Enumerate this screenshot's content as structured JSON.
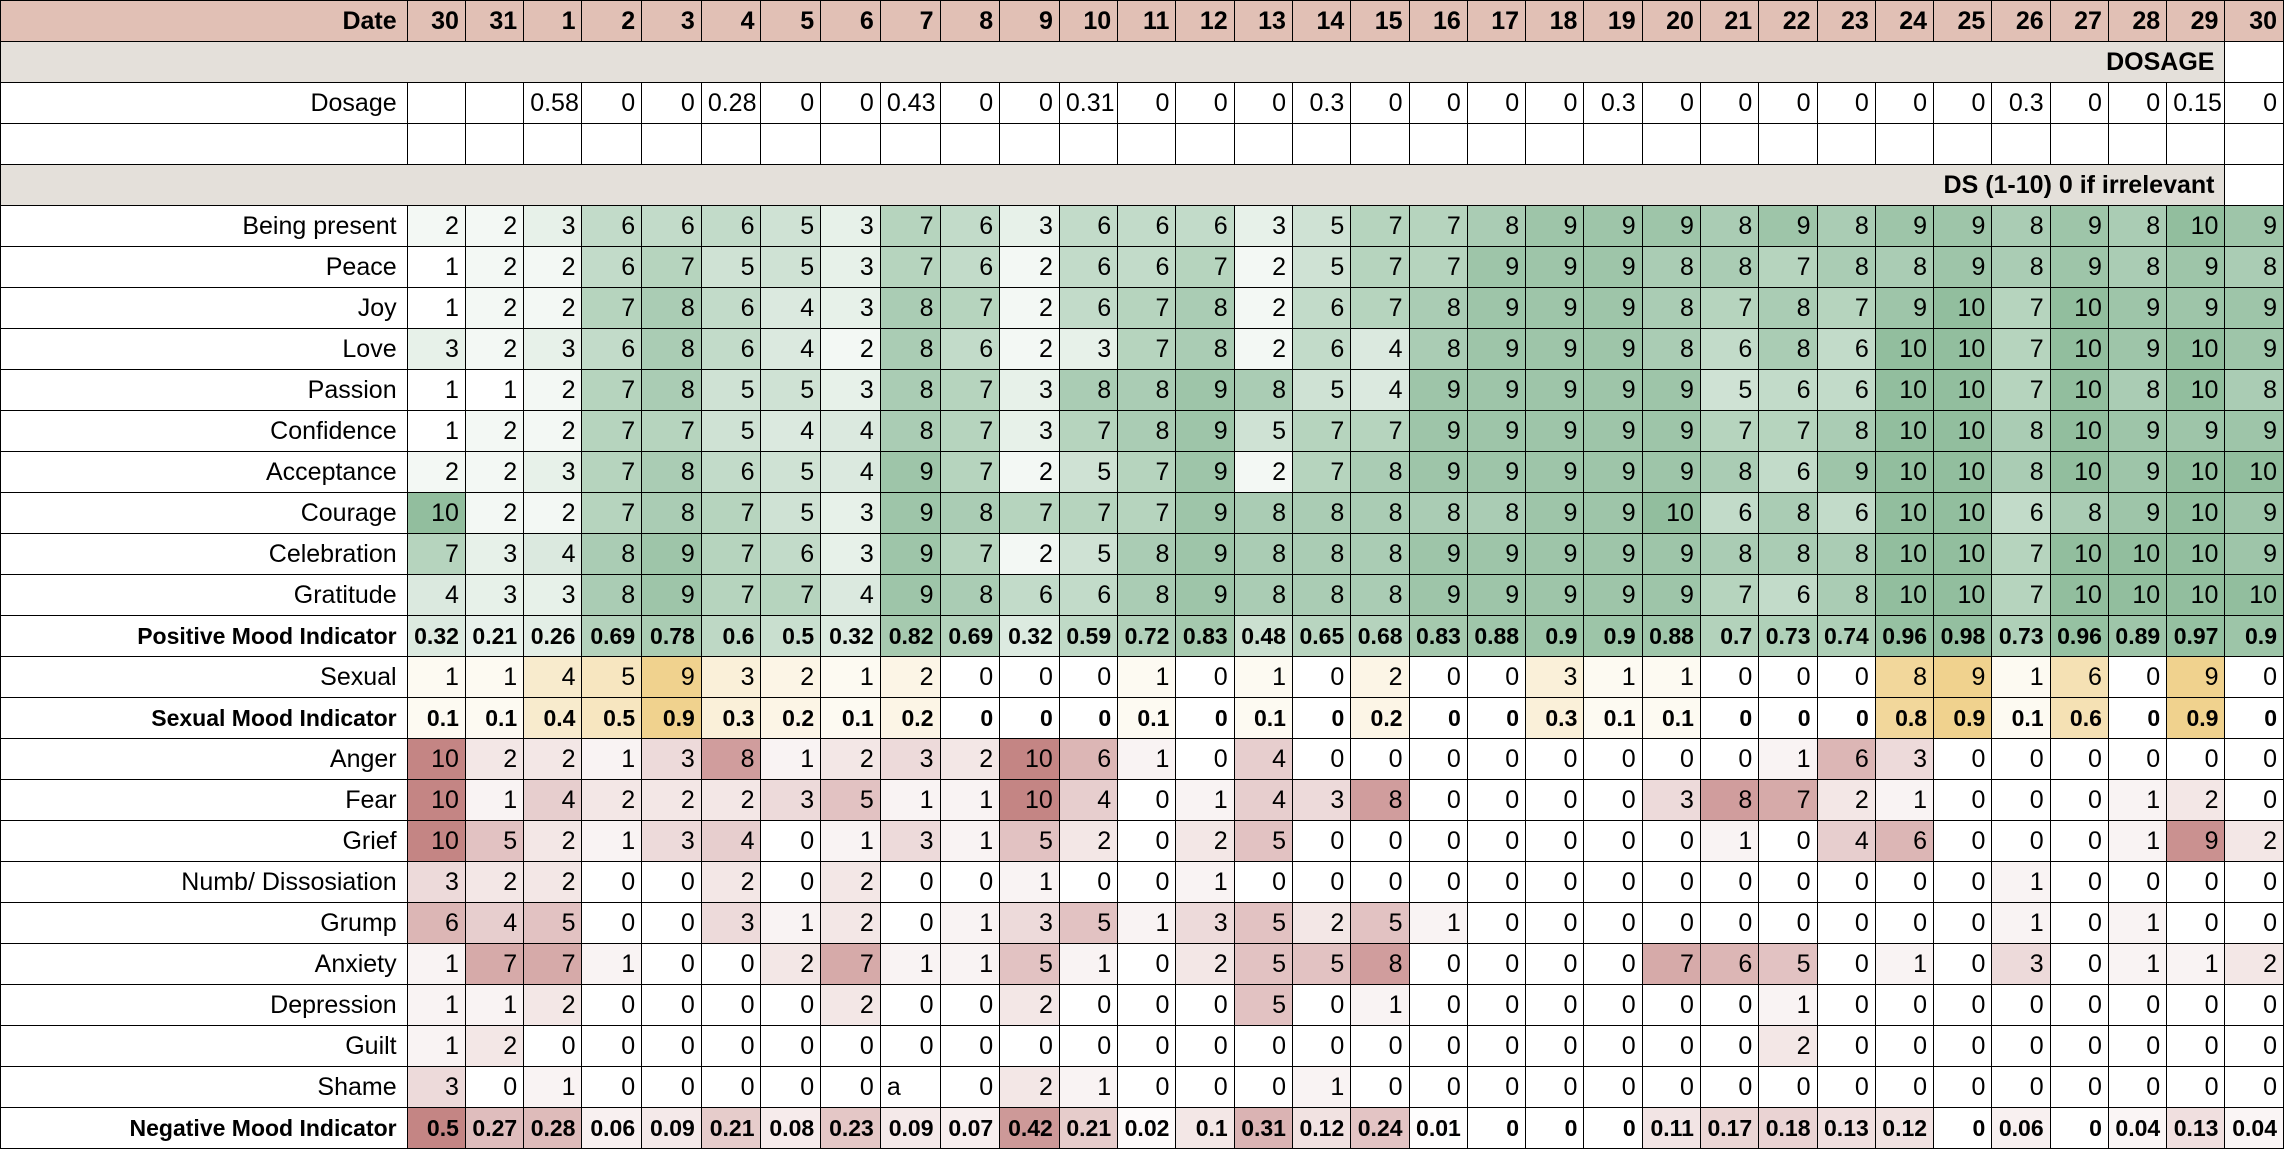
{
  "date_label": "Date",
  "dates": [
    "30",
    "31",
    "1",
    "2",
    "3",
    "4",
    "5",
    "6",
    "7",
    "8",
    "9",
    "10",
    "11",
    "12",
    "13",
    "14",
    "15",
    "16",
    "17",
    "18",
    "19",
    "20",
    "21",
    "22",
    "23",
    "24",
    "25",
    "26",
    "27",
    "28",
    "29",
    "30"
  ],
  "sections": {
    "dosage_title": "DOSAGE",
    "moods_title": "DS (1-10)  0 if irrelevant"
  },
  "colors": {
    "header_bg": "#e1c0b5",
    "section_bg": "#e4e0da",
    "positive_scale": [
      "#ffffff",
      "#92be9e"
    ],
    "sexual_scale": [
      "#ffffff",
      "#f0d28e"
    ],
    "negative_scale": [
      "#ffffff",
      "#c48584"
    ]
  },
  "rows": [
    {
      "label": "Dosage",
      "type": "plain",
      "values": [
        "",
        "",
        "0.58",
        "0",
        "0",
        "0.28",
        "0",
        "0",
        "0.43",
        "0",
        "0",
        "0.31",
        "0",
        "0",
        "0",
        "0.3",
        "0",
        "0",
        "0",
        "0",
        "0.3",
        "0",
        "0",
        "0",
        "0",
        "0",
        "0",
        "0.3",
        "0",
        "0",
        "0.15",
        "0"
      ]
    },
    {
      "label": "",
      "type": "blank",
      "values": [
        "",
        "",
        "",
        "",
        "",
        "",
        "",
        "",
        "",
        "",
        "",
        "",
        "",
        "",
        "",
        "",
        "",
        "",
        "",
        "",
        "",
        "",
        "",
        "",
        "",
        "",
        "",
        "",
        "",
        "",
        "",
        ""
      ]
    },
    {
      "label": "Being present",
      "type": "pos",
      "values": [
        "2",
        "2",
        "3",
        "6",
        "6",
        "6",
        "5",
        "3",
        "7",
        "6",
        "3",
        "6",
        "6",
        "6",
        "3",
        "5",
        "7",
        "7",
        "8",
        "9",
        "9",
        "9",
        "8",
        "9",
        "8",
        "9",
        "9",
        "8",
        "9",
        "8",
        "10",
        "9"
      ]
    },
    {
      "label": "Peace",
      "type": "pos",
      "values": [
        "1",
        "2",
        "2",
        "6",
        "7",
        "5",
        "5",
        "3",
        "7",
        "6",
        "2",
        "6",
        "6",
        "7",
        "2",
        "5",
        "7",
        "7",
        "9",
        "9",
        "9",
        "8",
        "8",
        "7",
        "8",
        "8",
        "9",
        "8",
        "9",
        "8",
        "9",
        "8"
      ]
    },
    {
      "label": "Joy",
      "type": "pos",
      "values": [
        "1",
        "2",
        "2",
        "7",
        "8",
        "6",
        "4",
        "3",
        "8",
        "7",
        "2",
        "6",
        "7",
        "8",
        "2",
        "6",
        "7",
        "8",
        "9",
        "9",
        "9",
        "8",
        "7",
        "8",
        "7",
        "9",
        "10",
        "7",
        "10",
        "9",
        "9",
        "9"
      ]
    },
    {
      "label": "Love",
      "type": "pos",
      "values": [
        "3",
        "2",
        "3",
        "6",
        "8",
        "6",
        "4",
        "2",
        "8",
        "6",
        "2",
        "3",
        "7",
        "8",
        "2",
        "6",
        "4",
        "8",
        "9",
        "9",
        "9",
        "8",
        "6",
        "8",
        "6",
        "10",
        "10",
        "7",
        "10",
        "9",
        "10",
        "9"
      ]
    },
    {
      "label": "Passion",
      "type": "pos",
      "values": [
        "1",
        "1",
        "2",
        "7",
        "8",
        "5",
        "5",
        "3",
        "8",
        "7",
        "3",
        "8",
        "8",
        "9",
        "8",
        "5",
        "4",
        "9",
        "9",
        "9",
        "9",
        "9",
        "5",
        "6",
        "6",
        "10",
        "10",
        "7",
        "10",
        "8",
        "10",
        "8"
      ]
    },
    {
      "label": "Confidence",
      "type": "pos",
      "values": [
        "1",
        "2",
        "2",
        "7",
        "7",
        "5",
        "4",
        "4",
        "8",
        "7",
        "3",
        "7",
        "8",
        "9",
        "5",
        "7",
        "7",
        "9",
        "9",
        "9",
        "9",
        "9",
        "7",
        "7",
        "8",
        "10",
        "10",
        "8",
        "10",
        "9",
        "9",
        "9"
      ]
    },
    {
      "label": "Acceptance",
      "type": "pos",
      "values": [
        "2",
        "2",
        "3",
        "7",
        "8",
        "6",
        "5",
        "4",
        "9",
        "7",
        "2",
        "5",
        "7",
        "9",
        "2",
        "7",
        "8",
        "9",
        "9",
        "9",
        "9",
        "9",
        "8",
        "6",
        "9",
        "10",
        "10",
        "8",
        "10",
        "9",
        "10",
        "10"
      ]
    },
    {
      "label": "Courage",
      "type": "pos",
      "values": [
        "10",
        "2",
        "2",
        "7",
        "8",
        "7",
        "5",
        "3",
        "9",
        "8",
        "7",
        "7",
        "7",
        "9",
        "8",
        "8",
        "8",
        "8",
        "8",
        "9",
        "9",
        "10",
        "6",
        "8",
        "6",
        "10",
        "10",
        "6",
        "8",
        "9",
        "10",
        "9"
      ]
    },
    {
      "label": "Celebration",
      "type": "pos",
      "values": [
        "7",
        "3",
        "4",
        "8",
        "9",
        "7",
        "6",
        "3",
        "9",
        "7",
        "2",
        "5",
        "8",
        "9",
        "8",
        "8",
        "8",
        "9",
        "9",
        "9",
        "9",
        "9",
        "8",
        "8",
        "8",
        "10",
        "10",
        "7",
        "10",
        "10",
        "10",
        "9"
      ]
    },
    {
      "label": "Gratitude",
      "type": "pos",
      "values": [
        "4",
        "3",
        "3",
        "8",
        "9",
        "7",
        "7",
        "4",
        "9",
        "8",
        "6",
        "6",
        "8",
        "9",
        "8",
        "8",
        "8",
        "9",
        "9",
        "9",
        "9",
        "9",
        "7",
        "6",
        "8",
        "10",
        "10",
        "7",
        "10",
        "10",
        "10",
        "10"
      ]
    },
    {
      "label": "Positive Mood Indicator",
      "type": "pos_ind",
      "values": [
        "0.32",
        "0.21",
        "0.26",
        "0.69",
        "0.78",
        "0.6",
        "0.5",
        "0.32",
        "0.82",
        "0.69",
        "0.32",
        "0.59",
        "0.72",
        "0.83",
        "0.48",
        "0.65",
        "0.68",
        "0.83",
        "0.88",
        "0.9",
        "0.9",
        "0.88",
        "0.7",
        "0.73",
        "0.74",
        "0.96",
        "0.98",
        "0.73",
        "0.96",
        "0.89",
        "0.97",
        "0.9"
      ]
    },
    {
      "label": "Sexual",
      "type": "sex",
      "values": [
        "1",
        "1",
        "4",
        "5",
        "9",
        "3",
        "2",
        "1",
        "2",
        "0",
        "0",
        "0",
        "1",
        "0",
        "1",
        "0",
        "2",
        "0",
        "0",
        "3",
        "1",
        "1",
        "0",
        "0",
        "0",
        "8",
        "9",
        "1",
        "6",
        "0",
        "9",
        "0"
      ]
    },
    {
      "label": "Sexual Mood Indicator",
      "type": "sex_ind",
      "values": [
        "0.1",
        "0.1",
        "0.4",
        "0.5",
        "0.9",
        "0.3",
        "0.2",
        "0.1",
        "0.2",
        "0",
        "0",
        "0",
        "0.1",
        "0",
        "0.1",
        "0",
        "0.2",
        "0",
        "0",
        "0.3",
        "0.1",
        "0.1",
        "0",
        "0",
        "0",
        "0.8",
        "0.9",
        "0.1",
        "0.6",
        "0",
        "0.9",
        "0"
      ]
    },
    {
      "label": "Anger",
      "type": "neg",
      "values": [
        "10",
        "2",
        "2",
        "1",
        "3",
        "8",
        "1",
        "2",
        "3",
        "2",
        "10",
        "6",
        "1",
        "0",
        "4",
        "0",
        "0",
        "0",
        "0",
        "0",
        "0",
        "0",
        "0",
        "1",
        "6",
        "3",
        "0",
        "0",
        "0",
        "0",
        "0",
        "0"
      ]
    },
    {
      "label": "Fear",
      "type": "neg",
      "values": [
        "10",
        "1",
        "4",
        "2",
        "2",
        "2",
        "3",
        "5",
        "1",
        "1",
        "10",
        "4",
        "0",
        "1",
        "4",
        "3",
        "8",
        "0",
        "0",
        "0",
        "0",
        "3",
        "8",
        "7",
        "2",
        "1",
        "0",
        "0",
        "0",
        "1",
        "2",
        "0"
      ]
    },
    {
      "label": "Grief",
      "type": "neg",
      "values": [
        "10",
        "5",
        "2",
        "1",
        "3",
        "4",
        "0",
        "1",
        "3",
        "1",
        "5",
        "2",
        "0",
        "2",
        "5",
        "0",
        "0",
        "0",
        "0",
        "0",
        "0",
        "0",
        "1",
        "0",
        "4",
        "6",
        "0",
        "0",
        "0",
        "1",
        "9",
        "2"
      ]
    },
    {
      "label": "Numb/ Dissosiation",
      "type": "neg",
      "values": [
        "3",
        "2",
        "2",
        "0",
        "0",
        "2",
        "0",
        "2",
        "0",
        "0",
        "1",
        "0",
        "0",
        "1",
        "0",
        "0",
        "0",
        "0",
        "0",
        "0",
        "0",
        "0",
        "0",
        "0",
        "0",
        "0",
        "0",
        "1",
        "0",
        "0",
        "0",
        "0"
      ]
    },
    {
      "label": "Grump",
      "type": "neg",
      "values": [
        "6",
        "4",
        "5",
        "0",
        "0",
        "3",
        "1",
        "2",
        "0",
        "1",
        "3",
        "5",
        "1",
        "3",
        "5",
        "2",
        "5",
        "1",
        "0",
        "0",
        "0",
        "0",
        "0",
        "0",
        "0",
        "0",
        "0",
        "1",
        "0",
        "1",
        "0",
        "0"
      ]
    },
    {
      "label": "Anxiety",
      "type": "neg",
      "values": [
        "1",
        "7",
        "7",
        "1",
        "0",
        "0",
        "2",
        "7",
        "1",
        "1",
        "5",
        "1",
        "0",
        "2",
        "5",
        "5",
        "8",
        "0",
        "0",
        "0",
        "0",
        "7",
        "6",
        "5",
        "0",
        "1",
        "0",
        "3",
        "0",
        "1",
        "1",
        "2"
      ]
    },
    {
      "label": "Depression",
      "type": "neg",
      "values": [
        "1",
        "1",
        "2",
        "0",
        "0",
        "0",
        "0",
        "2",
        "0",
        "0",
        "2",
        "0",
        "0",
        "0",
        "5",
        "0",
        "1",
        "0",
        "0",
        "0",
        "0",
        "0",
        "0",
        "1",
        "0",
        "0",
        "0",
        "0",
        "0",
        "0",
        "0",
        "0"
      ]
    },
    {
      "label": "Guilt",
      "type": "neg",
      "values": [
        "1",
        "2",
        "0",
        "0",
        "0",
        "0",
        "0",
        "0",
        "0",
        "0",
        "0",
        "0",
        "0",
        "0",
        "0",
        "0",
        "0",
        "0",
        "0",
        "0",
        "0",
        "0",
        "0",
        "2",
        "0",
        "0",
        "0",
        "0",
        "0",
        "0",
        "0",
        "0"
      ]
    },
    {
      "label": "Shame",
      "type": "neg",
      "values": [
        "3",
        "0",
        "1",
        "0",
        "0",
        "0",
        "0",
        "0",
        "a",
        "0",
        "2",
        "1",
        "0",
        "0",
        "0",
        "1",
        "0",
        "0",
        "0",
        "0",
        "0",
        "0",
        "0",
        "0",
        "0",
        "0",
        "0",
        "0",
        "0",
        "0",
        "0",
        "0"
      ]
    },
    {
      "label": "Negative Mood Indicator",
      "type": "neg_ind",
      "values": [
        "0.5",
        "0.27",
        "0.28",
        "0.06",
        "0.09",
        "0.21",
        "0.08",
        "0.23",
        "0.09",
        "0.07",
        "0.42",
        "0.21",
        "0.02",
        "0.1",
        "0.31",
        "0.12",
        "0.24",
        "0.01",
        "0",
        "0",
        "0",
        "0.11",
        "0.17",
        "0.18",
        "0.13",
        "0.12",
        "0",
        "0.06",
        "0",
        "0.04",
        "0.13",
        "0.04"
      ]
    }
  ]
}
